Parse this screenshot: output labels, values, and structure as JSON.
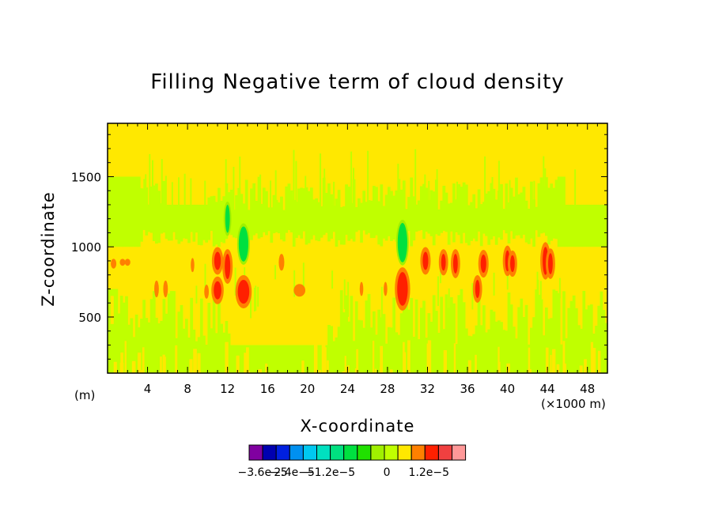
{
  "chart_data": {
    "type": "heatmap",
    "title": "Filling Negative term of cloud density",
    "xlabel": "X-coordinate",
    "ylabel": "Z-coordinate",
    "x_unit_left": "(m)",
    "x_unit_right": "(×1000 m)",
    "xlim": [
      0,
      50
    ],
    "ylim": [
      100,
      1880
    ],
    "x_ticks": [
      4,
      8,
      12,
      16,
      20,
      24,
      28,
      32,
      36,
      40,
      44,
      48
    ],
    "y_ticks": [
      500,
      1000,
      1500
    ],
    "background_level": "0 (yellow)",
    "bands": [
      {
        "level": "slightly negative (light green)",
        "z_range": [
          1000,
          1500
        ],
        "x_range": [
          0,
          50
        ]
      },
      {
        "level": "slightly negative (light green)",
        "z_range": [
          100,
          700
        ],
        "x_range": [
          0,
          50
        ]
      }
    ],
    "cells": [
      {
        "x": 11.0,
        "z": 900,
        "dx": 0.5,
        "dz": 130,
        "level": 4
      },
      {
        "x": 11.0,
        "z": 690,
        "dx": 0.6,
        "dz": 130,
        "level": 4
      },
      {
        "x": 12.0,
        "z": 860,
        "dx": 0.4,
        "dz": 180,
        "level": 3
      },
      {
        "x": 13.6,
        "z": 680,
        "dx": 1.0,
        "dz": 170,
        "level": 4
      },
      {
        "x": 13.6,
        "z": 1020,
        "dx": 0.8,
        "dz": 250,
        "level": -3
      },
      {
        "x": 12.0,
        "z": 1200,
        "dx": 0.3,
        "dz": 200,
        "level": -3
      },
      {
        "x": 19.2,
        "z": 690,
        "dx": 1.0,
        "dz": 90,
        "level": 1
      },
      {
        "x": 17.4,
        "z": 890,
        "dx": 0.4,
        "dz": 120,
        "level": 2
      },
      {
        "x": 29.5,
        "z": 700,
        "dx": 0.9,
        "dz": 240,
        "level": 4
      },
      {
        "x": 29.5,
        "z": 1030,
        "dx": 0.8,
        "dz": 280,
        "level": -3
      },
      {
        "x": 31.8,
        "z": 900,
        "dx": 0.4,
        "dz": 130,
        "level": 3
      },
      {
        "x": 33.6,
        "z": 890,
        "dx": 0.3,
        "dz": 120,
        "level": 3
      },
      {
        "x": 34.8,
        "z": 880,
        "dx": 0.3,
        "dz": 140,
        "level": 3
      },
      {
        "x": 37.0,
        "z": 700,
        "dx": 0.3,
        "dz": 130,
        "level": 3
      },
      {
        "x": 37.6,
        "z": 880,
        "dx": 0.4,
        "dz": 130,
        "level": 3
      },
      {
        "x": 40.0,
        "z": 900,
        "dx": 0.3,
        "dz": 150,
        "level": 3
      },
      {
        "x": 40.5,
        "z": 880,
        "dx": 0.3,
        "dz": 120,
        "level": 3
      },
      {
        "x": 43.8,
        "z": 900,
        "dx": 0.4,
        "dz": 200,
        "level": 3
      },
      {
        "x": 44.3,
        "z": 880,
        "dx": 0.3,
        "dz": 150,
        "level": 3
      },
      {
        "x": 0.6,
        "z": 880,
        "dx": 0.4,
        "dz": 70,
        "level": 1
      },
      {
        "x": 1.5,
        "z": 890,
        "dx": 0.4,
        "dz": 50,
        "level": 1
      },
      {
        "x": 2.0,
        "z": 890,
        "dx": 0.4,
        "dz": 50,
        "level": 1
      },
      {
        "x": 4.9,
        "z": 700,
        "dx": 0.3,
        "dz": 120,
        "level": 2
      },
      {
        "x": 5.8,
        "z": 700,
        "dx": 0.3,
        "dz": 120,
        "level": 2
      },
      {
        "x": 8.5,
        "z": 870,
        "dx": 0.2,
        "dz": 100,
        "level": 2
      },
      {
        "x": 9.9,
        "z": 680,
        "dx": 0.3,
        "dz": 100,
        "level": 2
      },
      {
        "x": 25.4,
        "z": 700,
        "dx": 0.2,
        "dz": 100,
        "level": 2
      },
      {
        "x": 27.8,
        "z": 700,
        "dx": 0.2,
        "dz": 100,
        "level": 2
      }
    ],
    "colorbar": {
      "colors": [
        "#8000A0",
        "#0000B0",
        "#0020E0",
        "#0090F0",
        "#00C8F0",
        "#00E0C0",
        "#00E080",
        "#00E040",
        "#20E000",
        "#A0F000",
        "#C0FF00",
        "#FFE800",
        "#FF8000",
        "#FF2000",
        "#F04040",
        "#FF9898"
      ],
      "labels": [
        "−3.6e−5",
        "−2.4e−5",
        "−1.2e−5",
        "0",
        "1.2e−5"
      ]
    }
  }
}
